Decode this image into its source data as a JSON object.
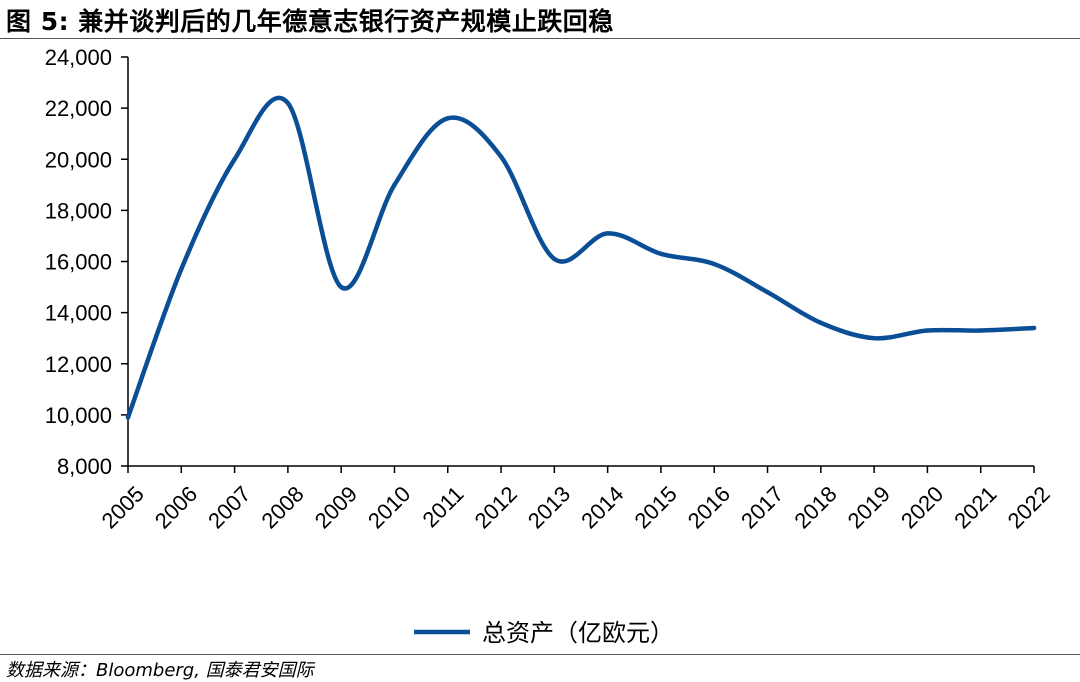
{
  "figure": {
    "title": "图 5:  兼并谈判后的几年德意志银行资产规模止跌回稳",
    "source": "数据来源：Bloomberg, 国泰君安国际"
  },
  "colors": {
    "series": "#0a4f96",
    "axis": "#000000",
    "rule": "#555555"
  },
  "chart_data": {
    "type": "line",
    "x": [
      "2005",
      "2006",
      "2007",
      "2008",
      "2009",
      "2010",
      "2011",
      "2012",
      "2013",
      "2014",
      "2015",
      "2016",
      "2017",
      "2018",
      "2019",
      "2020",
      "2021",
      "2022"
    ],
    "series": [
      {
        "name": "总资产（亿欧元）",
        "values": [
          9900,
          15700,
          20000,
          22200,
          15000,
          19000,
          21600,
          20100,
          16100,
          17100,
          16300,
          15900,
          14800,
          13600,
          13000,
          13300,
          13300,
          13400
        ]
      }
    ],
    "y_ticks": [
      "8,000",
      "10,000",
      "12,000",
      "14,000",
      "16,000",
      "18,000",
      "20,000",
      "22,000",
      "24,000"
    ],
    "ylim": [
      8000,
      24000
    ],
    "xlabel": "",
    "ylabel": "",
    "grid": false,
    "legend": "bottom-center"
  }
}
